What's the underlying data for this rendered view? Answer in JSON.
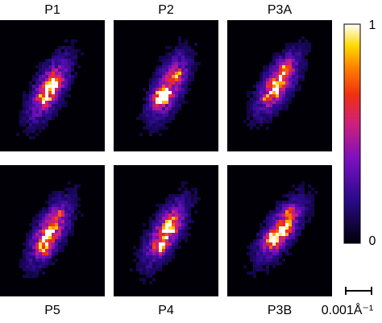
{
  "panels": [
    {
      "label": "P1"
    },
    {
      "label": "P2"
    },
    {
      "label": "P3A"
    },
    {
      "label": "P5"
    },
    {
      "label": "P4"
    },
    {
      "label": "P3B"
    }
  ],
  "colorbar": {
    "tick_labels": [
      "1",
      "0"
    ]
  },
  "scale_bar": {
    "label": "0.001Å⁻¹"
  }
}
